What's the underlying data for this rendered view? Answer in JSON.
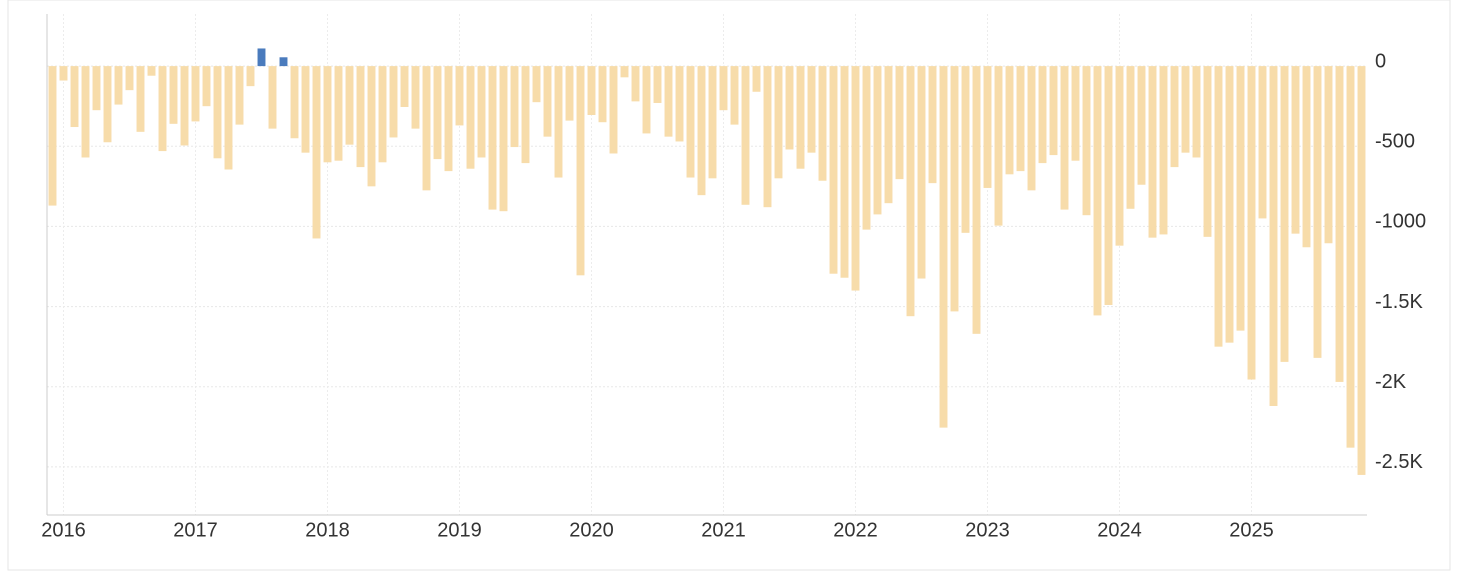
{
  "chart_data": {
    "type": "bar",
    "categories": [
      null,
      "2016",
      null,
      null,
      null,
      null,
      null,
      null,
      null,
      null,
      null,
      null,
      null,
      "2017",
      null,
      null,
      null,
      null,
      null,
      null,
      null,
      null,
      null,
      null,
      null,
      "2018",
      null,
      null,
      null,
      null,
      null,
      null,
      null,
      null,
      null,
      null,
      null,
      "2019",
      null,
      null,
      null,
      null,
      null,
      null,
      null,
      null,
      null,
      null,
      null,
      "2020",
      null,
      null,
      null,
      null,
      null,
      null,
      null,
      null,
      null,
      null,
      null,
      "2021",
      null,
      null,
      null,
      null,
      null,
      null,
      null,
      null,
      null,
      null,
      null,
      "2022",
      null,
      null,
      null,
      null,
      null,
      null,
      null,
      null,
      null,
      null,
      null,
      "2023",
      null,
      null,
      null,
      null,
      null,
      null,
      null,
      null,
      null,
      null,
      null,
      "2024",
      null,
      null,
      null,
      null,
      null,
      null,
      null,
      null,
      null,
      null,
      null,
      "2025",
      null,
      null,
      null,
      null,
      null,
      null,
      null,
      null,
      null,
      null
    ],
    "values": [
      -870,
      -90,
      -380,
      -570,
      -275,
      -475,
      -240,
      -150,
      -410,
      -60,
      -530,
      -360,
      -495,
      -345,
      -250,
      -575,
      -645,
      -365,
      -125,
      110,
      -390,
      55,
      -450,
      -540,
      -1075,
      -600,
      -590,
      -490,
      -630,
      -750,
      -600,
      -445,
      -255,
      -390,
      -775,
      -580,
      -655,
      -370,
      -640,
      -570,
      -895,
      -905,
      -505,
      -605,
      -225,
      -440,
      -695,
      -340,
      -1305,
      -305,
      -350,
      -545,
      -70,
      -220,
      -420,
      -230,
      -440,
      -470,
      -695,
      -805,
      -700,
      -275,
      -365,
      -865,
      -160,
      -880,
      -700,
      -520,
      -640,
      -540,
      -715,
      -1295,
      -1320,
      -1400,
      -1020,
      -925,
      -855,
      -705,
      -1560,
      -1325,
      -730,
      -2255,
      -1530,
      -1040,
      -1670,
      -760,
      -995,
      -675,
      -655,
      -775,
      -605,
      -555,
      -895,
      -590,
      -930,
      -1555,
      -1490,
      -1120,
      -890,
      -740,
      -1070,
      -1050,
      -630,
      -540,
      -570,
      -1065,
      -1750,
      -1725,
      -1650,
      -1955,
      -950,
      -2120,
      -1845,
      -1045,
      -1130,
      -1820,
      -1105,
      -1970,
      -2380,
      -2550
    ],
    "color": "#f7dcaa",
    "positive_color": "#4a7bbd",
    "ylim": [
      -2800,
      325
    ],
    "yticks": [
      0,
      -500,
      -1000,
      {
        "value": -1500,
        "label": "-1.5K"
      },
      {
        "value": -2000,
        "label": "-2K"
      },
      {
        "value": -2500,
        "label": "-2.5K"
      }
    ],
    "grid": true
  }
}
